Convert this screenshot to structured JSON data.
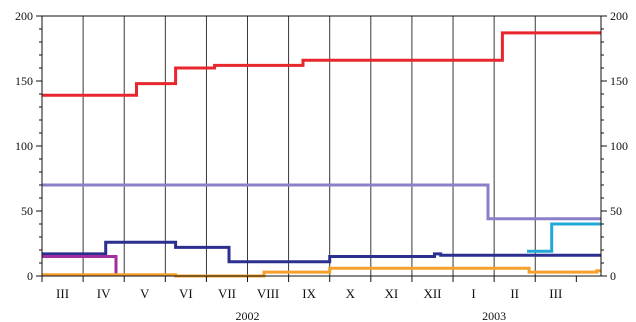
{
  "chart_data": {
    "type": "line",
    "step": true,
    "title": "",
    "xlabel": "",
    "ylabel": "",
    "ylim": [
      0,
      200
    ],
    "y_ticks_major": [
      0,
      50,
      100,
      150,
      200
    ],
    "y_ticks_minor_step": 10,
    "y_axis_both_sides": true,
    "grid": {
      "vertical_month_boundaries": true,
      "horizontal": false
    },
    "x_unit": "month",
    "xlim": [
      0,
      13.6
    ],
    "months": [
      "III",
      "IV",
      "V",
      "VI",
      "VII",
      "VIII",
      "IX",
      "X",
      "XI",
      "XII",
      "I",
      "II",
      "III"
    ],
    "years": [
      {
        "label": "2002",
        "center": 5.0
      },
      {
        "label": "2003",
        "center": 11.0
      }
    ],
    "series": [
      {
        "color": "#e8262d",
        "points": [
          [
            0,
            139
          ],
          [
            2.3,
            139
          ],
          [
            2.3,
            148
          ],
          [
            3.25,
            148
          ],
          [
            3.25,
            160
          ],
          [
            4.2,
            160
          ],
          [
            4.2,
            162
          ],
          [
            6.35,
            162
          ],
          [
            6.35,
            166
          ],
          [
            11.2,
            166
          ],
          [
            11.2,
            187
          ],
          [
            13.6,
            187
          ]
        ]
      },
      {
        "color": "#8c7fc9",
        "points": [
          [
            0,
            70
          ],
          [
            10.85,
            70
          ],
          [
            10.85,
            44
          ],
          [
            13.6,
            44
          ]
        ]
      },
      {
        "color": "#2b2f8f",
        "points": [
          [
            0,
            17
          ],
          [
            1.55,
            17
          ],
          [
            1.55,
            26
          ],
          [
            3.25,
            26
          ],
          [
            3.25,
            22
          ],
          [
            4.55,
            22
          ],
          [
            4.55,
            11
          ],
          [
            7.0,
            11
          ],
          [
            7.0,
            15
          ],
          [
            9.55,
            15
          ],
          [
            9.55,
            17
          ],
          [
            9.7,
            17
          ],
          [
            9.7,
            16
          ],
          [
            13.6,
            16
          ]
        ]
      },
      {
        "color": "#a12f9f",
        "points": [
          [
            0,
            15
          ],
          [
            1.8,
            15
          ],
          [
            1.8,
            2
          ]
        ]
      },
      {
        "color": "#f5a02a",
        "points": [
          [
            0,
            1
          ],
          [
            3.25,
            1
          ],
          [
            3.25,
            0
          ],
          [
            5.4,
            0
          ],
          [
            5.4,
            3
          ],
          [
            7.0,
            3
          ],
          [
            7.0,
            6
          ],
          [
            11.85,
            6
          ],
          [
            11.85,
            3
          ],
          [
            13.5,
            3
          ],
          [
            13.5,
            4
          ],
          [
            13.6,
            4
          ]
        ]
      },
      {
        "color": "#22a8d6",
        "points": [
          [
            11.8,
            19
          ],
          [
            12.4,
            19
          ],
          [
            12.4,
            40
          ],
          [
            13.6,
            40
          ]
        ]
      }
    ]
  }
}
